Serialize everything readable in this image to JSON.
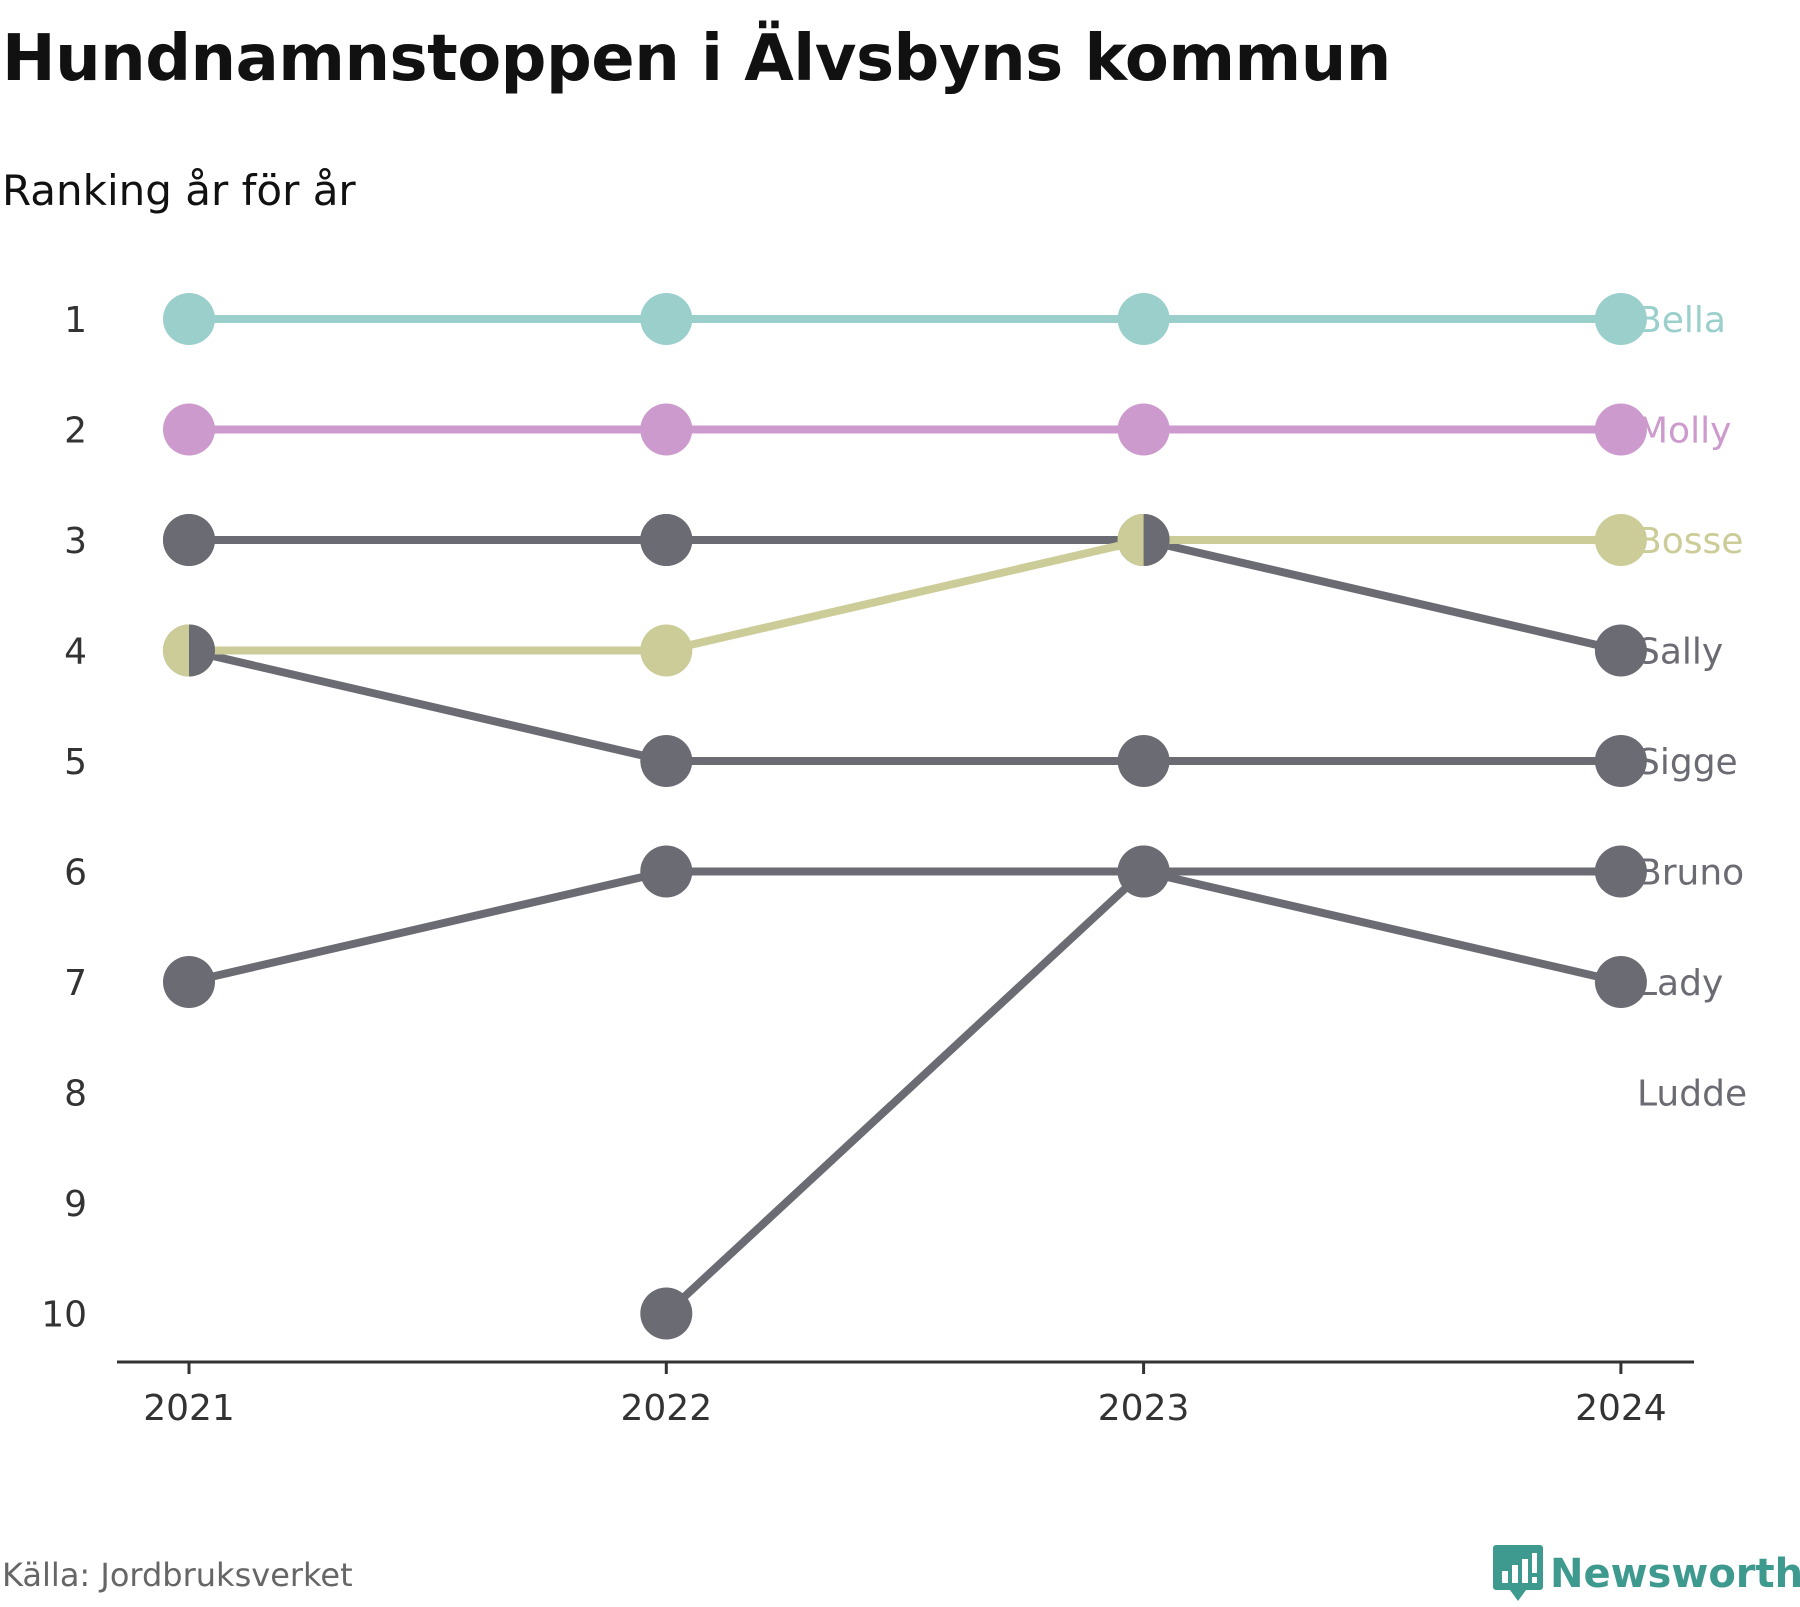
{
  "title": "Hundnamnstoppen i Älvsbyns kommun",
  "subtitle": "Ranking år för år",
  "source": "Källa: Jordbruksverket",
  "brand": {
    "name": "Newsworthy",
    "icon": "newsworthy-logo-icon",
    "color": "#3e9a8f"
  },
  "chart_data": {
    "type": "line",
    "x": [
      "2021",
      "2022",
      "2023",
      "2024"
    ],
    "yticks": [
      "1",
      "2",
      "3",
      "4",
      "5",
      "6",
      "7",
      "8",
      "9",
      "10"
    ],
    "ylim": [
      1,
      10
    ],
    "y_inverted": true,
    "grid": false,
    "axis_color": "#333333",
    "series": [
      {
        "name": "Bella",
        "values": [
          1,
          1,
          1,
          1
        ],
        "color": "#9acfcc"
      },
      {
        "name": "Molly",
        "values": [
          2,
          2,
          2,
          2
        ],
        "color": "#cd9acd"
      },
      {
        "name": "Bosse",
        "values": [
          4,
          4,
          3,
          3
        ],
        "color": "#cccc99"
      },
      {
        "name": "Sally",
        "values": [
          3,
          3,
          3,
          4
        ],
        "color": "#6b6b73"
      },
      {
        "name": "Sigge",
        "values": [
          4,
          5,
          5,
          5
        ],
        "color": "#6b6b73"
      },
      {
        "name": "Bruno",
        "values": [
          7,
          6,
          6,
          6
        ],
        "color": "#6b6b73"
      },
      {
        "name": "Lady",
        "values": [
          null,
          10,
          6,
          7
        ],
        "color": "#6b6b73"
      },
      {
        "name": "Ludde",
        "values": [
          3,
          3,
          3,
          null
        ],
        "color": "#6b6b73"
      }
    ]
  }
}
